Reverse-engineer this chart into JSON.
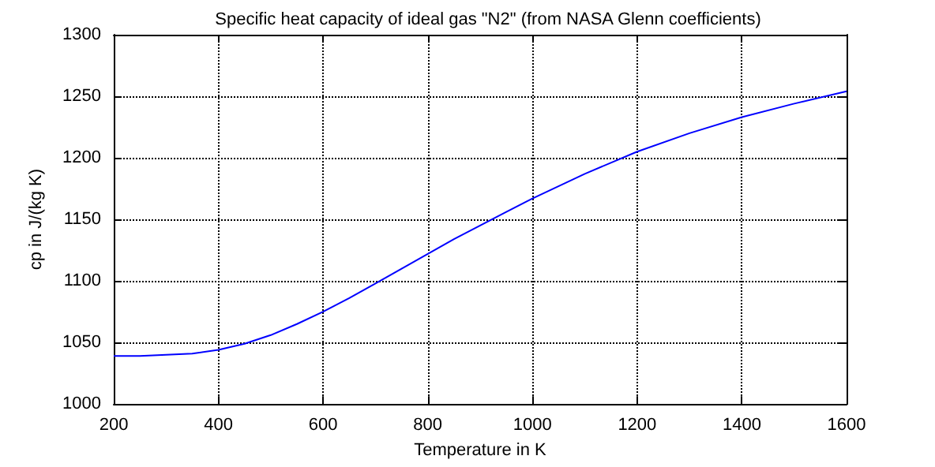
{
  "chart_data": {
    "type": "line",
    "title": "Specific heat capacity of ideal gas \"N2\" (from NASA Glenn coefficients)",
    "xlabel": "Temperature in K",
    "ylabel": "cp in J/(kg K)",
    "x": [
      200,
      250,
      300,
      350,
      400,
      450,
      500,
      550,
      600,
      650,
      700,
      750,
      800,
      850,
      900,
      950,
      1000,
      1100,
      1200,
      1300,
      1400,
      1500,
      1600
    ],
    "series": [
      {
        "color": "#0000ff",
        "values": [
          1039,
          1039,
          1040,
          1041,
          1044,
          1049,
          1056,
          1065,
          1075,
          1086,
          1098,
          1110,
          1122,
          1134,
          1145,
          1156,
          1167,
          1187,
          1205,
          1220,
          1233,
          1244,
          1254
        ]
      }
    ],
    "xlim": [
      200,
      1600
    ],
    "xticks": [
      200,
      400,
      600,
      800,
      1000,
      1200,
      1400,
      1600
    ],
    "ylim": [
      1000,
      1300
    ],
    "yticks": [
      1000,
      1050,
      1100,
      1150,
      1200,
      1250,
      1300
    ],
    "grid": true,
    "marker": "none"
  }
}
